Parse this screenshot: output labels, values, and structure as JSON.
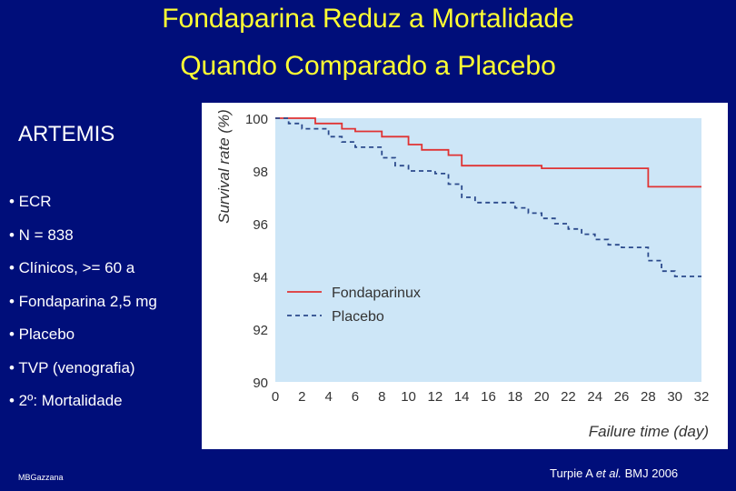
{
  "slide": {
    "title_line1": "Fondaparina Reduz a Mortalidade",
    "title_line2": "Quando Comparado a Placebo",
    "study": "ARTEMIS",
    "bullets": [
      "• ECR",
      "• N = 838",
      "• Clínicos, >= 60 a",
      "• Fondaparina 2,5 mg",
      "• Placebo",
      "• TVP (venografia)",
      "• 2º: Mortalidade"
    ],
    "author": "MBGazzana",
    "citation_prefix": "Turpie A ",
    "citation_etal": "et al.",
    "citation_suffix": " BMJ 2006"
  },
  "colors": {
    "background": "#000e7a",
    "title": "#ffff33",
    "plot_background": "#cde6f7",
    "fondaparinux": "#e03333",
    "placebo": "#2b4a8c"
  },
  "chart_data": {
    "type": "line",
    "xlabel": "Failure time (day)",
    "ylabel": "Survival rate (%)",
    "xlim": [
      0,
      32
    ],
    "ylim": [
      90,
      100
    ],
    "xticks": [
      0,
      2,
      4,
      6,
      8,
      10,
      12,
      14,
      16,
      18,
      20,
      22,
      24,
      26,
      28,
      30,
      32
    ],
    "yticks": [
      90,
      92,
      94,
      96,
      98,
      100
    ],
    "legend_position": "center",
    "step": true,
    "series": [
      {
        "name": "Fondaparinux",
        "style": "solid",
        "x": [
          0,
          2,
          3,
          5,
          6,
          8,
          10,
          11,
          13,
          14,
          20,
          28,
          32
        ],
        "y": [
          100,
          100,
          99.8,
          99.6,
          99.5,
          99.3,
          99.0,
          98.8,
          98.6,
          98.2,
          98.1,
          97.4,
          97.4
        ]
      },
      {
        "name": "Placebo",
        "style": "dashed",
        "x": [
          0,
          1,
          2,
          4,
          5,
          6,
          8,
          9,
          10,
          12,
          13,
          14,
          15,
          18,
          19,
          20,
          21,
          22,
          23,
          24,
          25,
          26,
          28,
          29,
          30,
          32
        ],
        "y": [
          100,
          99.8,
          99.6,
          99.3,
          99.1,
          98.9,
          98.5,
          98.2,
          98.0,
          97.9,
          97.5,
          97.0,
          96.8,
          96.6,
          96.4,
          96.2,
          96.0,
          95.8,
          95.6,
          95.4,
          95.2,
          95.1,
          94.6,
          94.2,
          94.0,
          94.0
        ]
      }
    ]
  }
}
